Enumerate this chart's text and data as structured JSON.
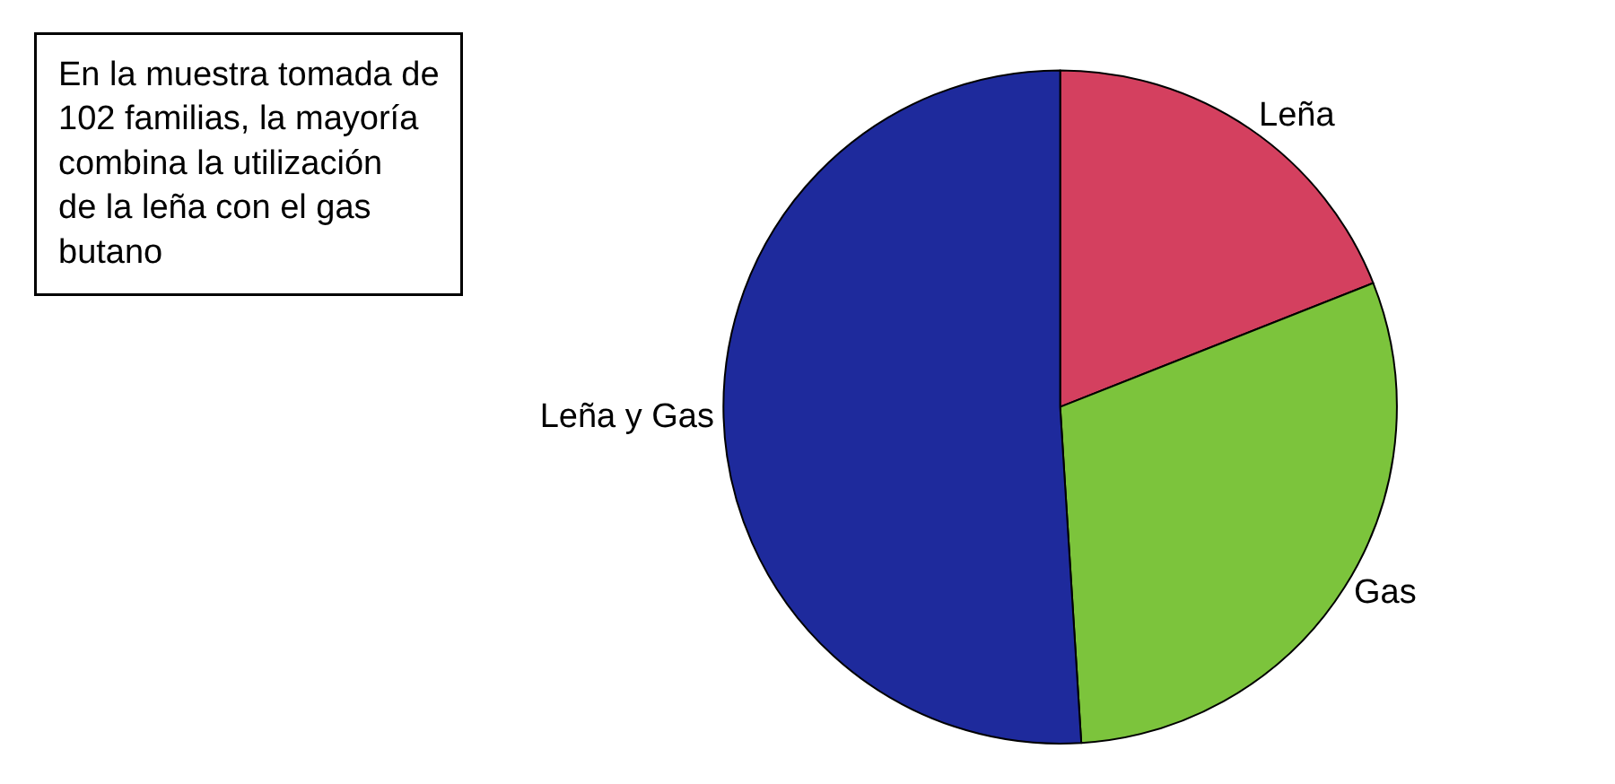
{
  "chart_data": {
    "type": "pie",
    "categories": [
      "Leña",
      "Gas",
      "Leña y Gas"
    ],
    "values": [
      19,
      30,
      51
    ],
    "colors": [
      "#d4405f",
      "#7cc43c",
      "#1e2a9c"
    ],
    "legend": false,
    "annotations": [
      "En la muestra tomada de 102 familias, la mayoría combina la utilización de la leña con el gas butano"
    ]
  }
}
